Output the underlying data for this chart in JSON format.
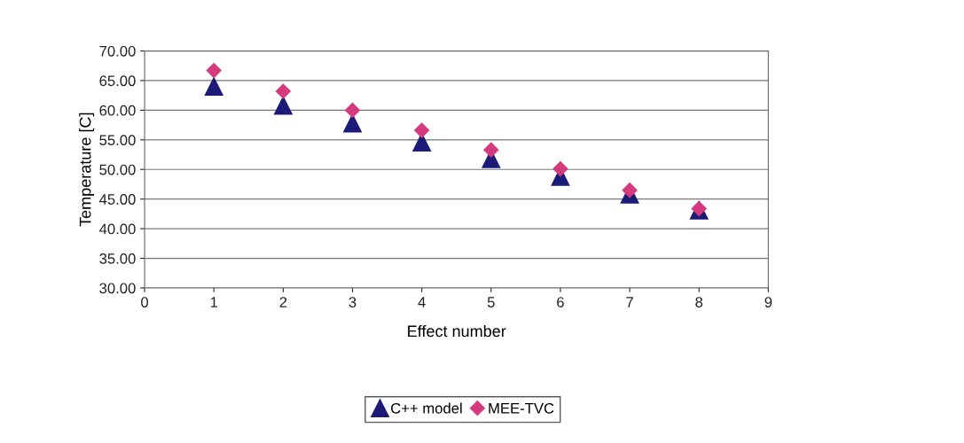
{
  "chart_data": {
    "type": "scatter",
    "xlabel": "Effect number",
    "ylabel": "Temperature [C]",
    "x": [
      1,
      2,
      3,
      4,
      5,
      6,
      7,
      8
    ],
    "series": [
      {
        "name": "C++ model",
        "color": "#1c1c78",
        "marker": "triangle",
        "values": [
          64.0,
          60.8,
          57.8,
          54.6,
          51.8,
          48.8,
          45.8,
          43.1
        ]
      },
      {
        "name": "MEE-TVC",
        "color": "#d63a7e",
        "marker": "diamond",
        "values": [
          66.7,
          63.2,
          60.0,
          56.6,
          53.3,
          50.1,
          46.5,
          43.4
        ]
      }
    ],
    "xlim": [
      0,
      9
    ],
    "xticks": [
      0,
      1,
      2,
      3,
      4,
      5,
      6,
      7,
      8,
      9
    ],
    "ylim": [
      30,
      70
    ],
    "yticks": [
      {
        "value": 30,
        "label": "30.00"
      },
      {
        "value": 35,
        "label": "35.00"
      },
      {
        "value": 40,
        "label": "40.00"
      },
      {
        "value": 45,
        "label": "45.00"
      },
      {
        "value": 50,
        "label": "50.00"
      },
      {
        "value": 55,
        "label": "55.00"
      },
      {
        "value": 60,
        "label": "60.00"
      },
      {
        "value": 65,
        "label": "65.00"
      },
      {
        "value": 70,
        "label": "70.00"
      }
    ],
    "grid": "y",
    "legend": "bottom"
  }
}
